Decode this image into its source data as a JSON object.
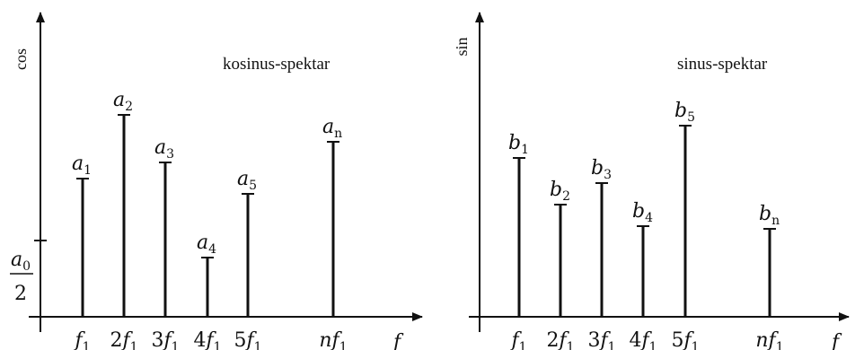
{
  "panels": [
    {
      "id": "cos",
      "y_axis_label": "cos",
      "title": "kosinus-spektar",
      "x_axis_symbol": "f",
      "dc_term": {
        "numerator": "a",
        "numerator_sub": "0",
        "denominator": "2",
        "value": 85
      },
      "lines": [
        {
          "sym": "a",
          "sub": "1",
          "tick": "f",
          "tick_mult": "",
          "tick_sub": "1",
          "value": 154
        },
        {
          "sym": "a",
          "sub": "2",
          "tick": "f",
          "tick_mult": "2",
          "tick_sub": "1",
          "value": 225
        },
        {
          "sym": "a",
          "sub": "3",
          "tick": "f",
          "tick_mult": "3",
          "tick_sub": "1",
          "value": 172
        },
        {
          "sym": "a",
          "sub": "4",
          "tick": "f",
          "tick_mult": "4",
          "tick_sub": "1",
          "value": 66
        },
        {
          "sym": "a",
          "sub": "5",
          "tick": "f",
          "tick_mult": "5",
          "tick_sub": "1",
          "value": 137
        },
        {
          "sym": "a",
          "sub": "n",
          "tick": "f",
          "tick_mult": "n",
          "tick_sub": "1",
          "value": 195
        }
      ]
    },
    {
      "id": "sin",
      "y_axis_label": "sin",
      "title": "sinus-spektar",
      "x_axis_symbol": "f",
      "lines": [
        {
          "sym": "b",
          "sub": "1",
          "tick": "f",
          "tick_mult": "",
          "tick_sub": "1",
          "value": 177
        },
        {
          "sym": "b",
          "sub": "2",
          "tick": "f",
          "tick_mult": "2",
          "tick_sub": "1",
          "value": 125
        },
        {
          "sym": "b",
          "sub": "3",
          "tick": "f",
          "tick_mult": "3",
          "tick_sub": "1",
          "value": 149
        },
        {
          "sym": "b",
          "sub": "4",
          "tick": "f",
          "tick_mult": "4",
          "tick_sub": "1",
          "value": 101
        },
        {
          "sym": "b",
          "sub": "5",
          "tick": "f",
          "tick_mult": "5",
          "tick_sub": "1",
          "value": 213
        },
        {
          "sym": "b",
          "sub": "n",
          "tick": "f",
          "tick_mult": "n",
          "tick_sub": "1",
          "value": 98
        }
      ]
    }
  ],
  "colors": {
    "ink": "#111111",
    "background": "#ffffff"
  }
}
